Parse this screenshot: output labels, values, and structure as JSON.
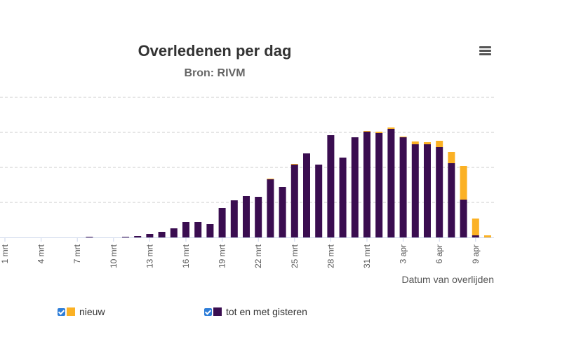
{
  "title": "Overledenen per dag",
  "subtitle": "Bron: RIVM",
  "menu_icon": "hamburger-menu-icon",
  "colors": {
    "nieuw": "#fbb124",
    "gisteren": "#3a0d50",
    "grid": "#cccccc",
    "axis_text": "#555555"
  },
  "chart_data": {
    "type": "bar",
    "stacked": true,
    "xlabel": "Datum van overlijden",
    "x_tick_labels": [
      "1 mrt",
      "4 mrt",
      "7 mrt",
      "10 mrt",
      "13 mrt",
      "16 mrt",
      "19 mrt",
      "22 mrt",
      "25 mrt",
      "28 mrt",
      "31 mrt",
      "3 apr",
      "6 apr",
      "9 apr"
    ],
    "categories": [
      "1 mrt",
      "2 mrt",
      "3 mrt",
      "4 mrt",
      "5 mrt",
      "6 mrt",
      "7 mrt",
      "8 mrt",
      "9 mrt",
      "10 mrt",
      "11 mrt",
      "12 mrt",
      "13 mrt",
      "14 mrt",
      "15 mrt",
      "16 mrt",
      "17 mrt",
      "18 mrt",
      "19 mrt",
      "20 mrt",
      "21 mrt",
      "22 mrt",
      "23 mrt",
      "24 mrt",
      "25 mrt",
      "26 mrt",
      "27 mrt",
      "28 mrt",
      "29 mrt",
      "30 mrt",
      "31 mrt",
      "1 apr",
      "2 apr",
      "3 apr",
      "4 apr",
      "5 apr",
      "6 apr",
      "7 apr",
      "8 apr",
      "9 apr",
      "10 apr"
    ],
    "ylim": [
      0,
      200
    ],
    "y_gridlines": [
      50,
      100,
      150,
      200
    ],
    "grid": true,
    "legend_position": "bottom",
    "series": [
      {
        "name": "nieuw",
        "values": [
          0,
          0,
          0,
          0,
          0,
          0,
          0,
          0,
          0,
          0,
          0,
          0,
          0,
          0,
          0,
          0,
          0,
          0,
          0,
          0,
          0,
          0,
          1,
          0,
          1,
          0,
          0,
          0,
          0,
          0,
          1,
          2,
          2,
          1,
          4,
          3,
          9,
          16,
          48,
          24,
          3
        ]
      },
      {
        "name": "tot en met gisteren",
        "values": [
          0,
          0,
          0,
          0,
          0,
          0,
          0,
          1,
          0,
          0,
          1,
          2,
          5,
          8,
          13,
          22,
          22,
          19,
          42,
          53,
          59,
          58,
          83,
          72,
          104,
          120,
          104,
          146,
          114,
          143,
          151,
          149,
          155,
          143,
          133,
          133,
          129,
          106,
          54,
          3,
          0
        ]
      }
    ]
  }
}
